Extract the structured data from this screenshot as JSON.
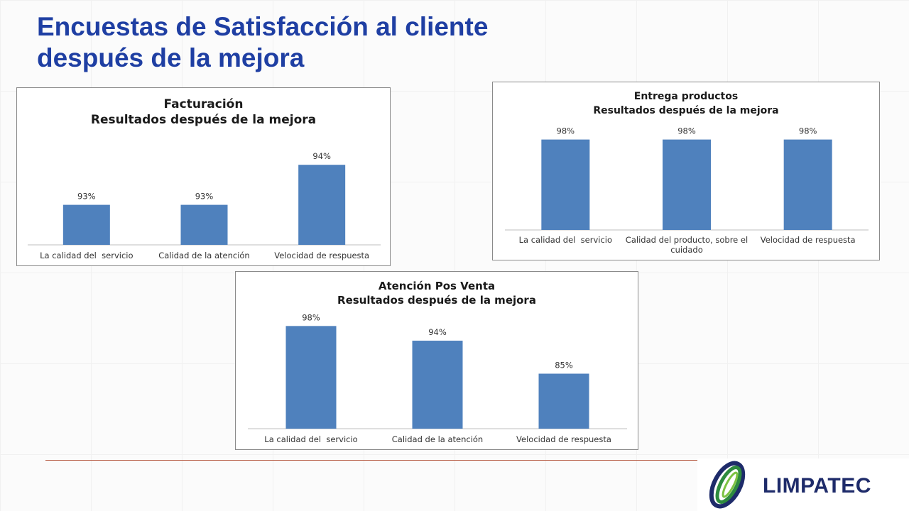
{
  "title": {
    "line1": "Encuestas de Satisfacción al cliente",
    "line2": "después de la mejora"
  },
  "colors": {
    "title": "#1f3fa3",
    "bar": "#4f81bd",
    "divider": "#b3543a",
    "logo_blue": "#1e2b6a",
    "logo_green": "#2e8b3e"
  },
  "logo": {
    "word": "LIMPATEC",
    "icon": "limpatec-swirl-logo-icon"
  },
  "chart_data": [
    {
      "type": "bar",
      "title_line1": "Facturación",
      "title_line2": "Resultados después de la mejora",
      "categories": [
        "La calidad del  servicio",
        "Calidad de la atención",
        "Velocidad de respuesta"
      ],
      "values": [
        93,
        93,
        94
      ],
      "data_labels": [
        "93%",
        "93%",
        "94%"
      ],
      "ylim": [
        92,
        94.5
      ],
      "grid": false,
      "legend": "none"
    },
    {
      "type": "bar",
      "title_line1": "Entrega productos",
      "title_line2": "Resultados después de la mejora",
      "categories": [
        "La calidad del  servicio",
        "Calidad del producto, sobre el cuidado",
        "Velocidad de respuesta"
      ],
      "values": [
        98,
        98,
        98
      ],
      "data_labels": [
        "98%",
        "98%",
        "98%"
      ],
      "ylim": [
        0,
        100
      ],
      "grid": false,
      "legend": "none"
    },
    {
      "type": "bar",
      "title_line1": "Atención Pos Venta",
      "title_line2": "Resultados después de la mejora",
      "categories": [
        "La calidad del  servicio",
        "Calidad de la atención",
        "Velocidad de respuesta"
      ],
      "values": [
        98,
        94,
        85
      ],
      "data_labels": [
        "98%",
        "94%",
        "85%"
      ],
      "ylim": [
        70,
        100
      ],
      "grid": false,
      "legend": "none"
    }
  ]
}
